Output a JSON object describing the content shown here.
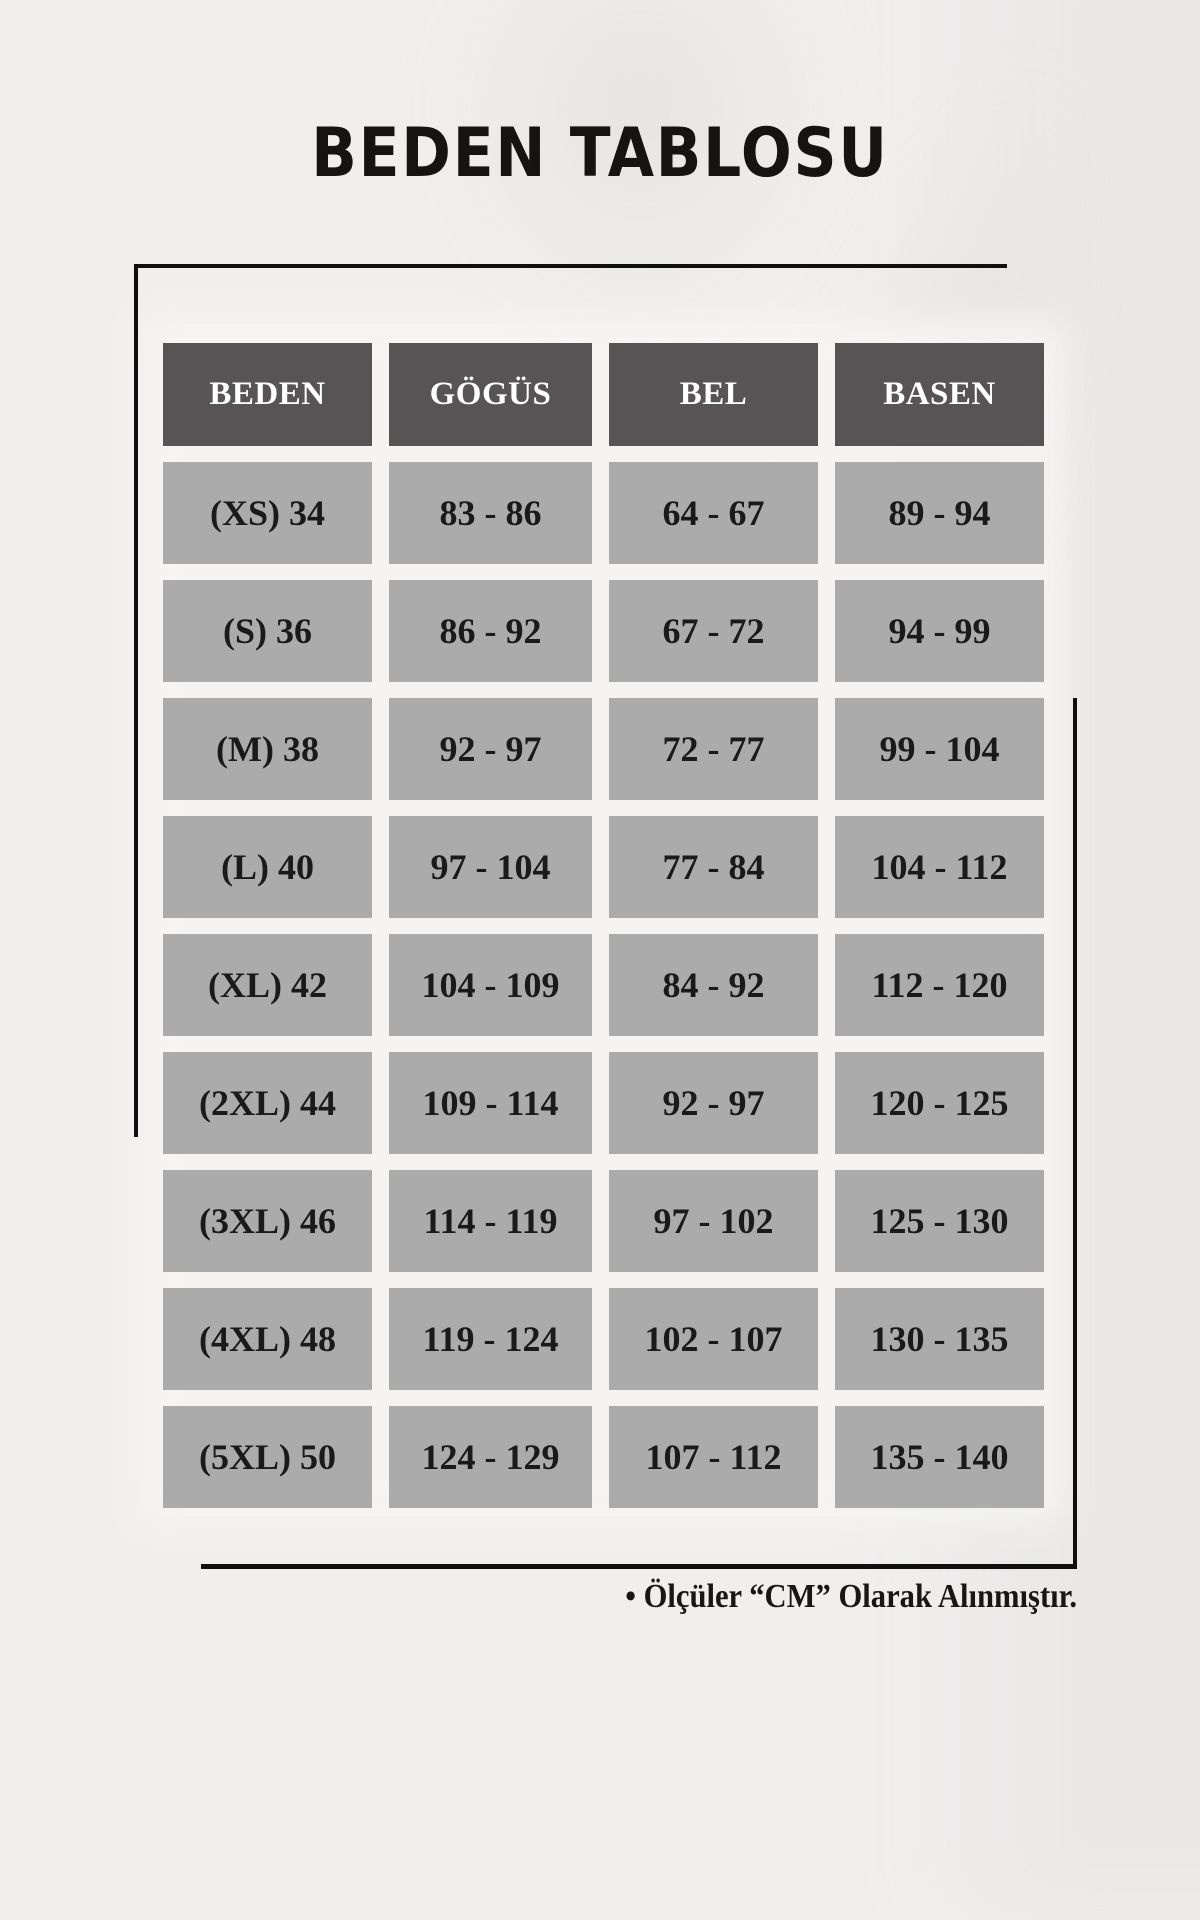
{
  "page": {
    "title": "BEDEN TABLOSU",
    "footnote": "• Ölçüler “CM” Olarak Alınmıştır."
  },
  "colors": {
    "background": "#f0efee",
    "header_cell": "#575456",
    "data_cell": "#acabac",
    "header_text": "#ffffff",
    "cell_text": "#1b1a1a",
    "accent_line": "#101010"
  },
  "chart_data": {
    "type": "table",
    "title": "BEDEN TABLOSU",
    "columns": [
      "BEDEN",
      "GÖGÜS",
      "BEL",
      "BASEN"
    ],
    "rows": [
      [
        "(XS) 34",
        "83 - 86",
        "64 - 67",
        "89 - 94"
      ],
      [
        "(S) 36",
        "86 - 92",
        "67 - 72",
        "94 - 99"
      ],
      [
        "(M) 38",
        "92 - 97",
        "72 - 77",
        "99 - 104"
      ],
      [
        "(L) 40",
        "97 - 104",
        "77 - 84",
        "104 - 112"
      ],
      [
        "(XL) 42",
        "104 - 109",
        "84 - 92",
        "112 - 120"
      ],
      [
        "(2XL) 44",
        "109 - 114",
        "92 - 97",
        "120 - 125"
      ],
      [
        "(3XL) 46",
        "114 - 119",
        "97 - 102",
        "125 - 130"
      ],
      [
        "(4XL) 48",
        "119 - 124",
        "102 - 107",
        "130 - 135"
      ],
      [
        "(5XL) 50",
        "124 - 129",
        "107 - 112",
        "135 - 140"
      ]
    ],
    "footnote": "• Ölçüler “CM” Olarak Alınmıştır."
  }
}
